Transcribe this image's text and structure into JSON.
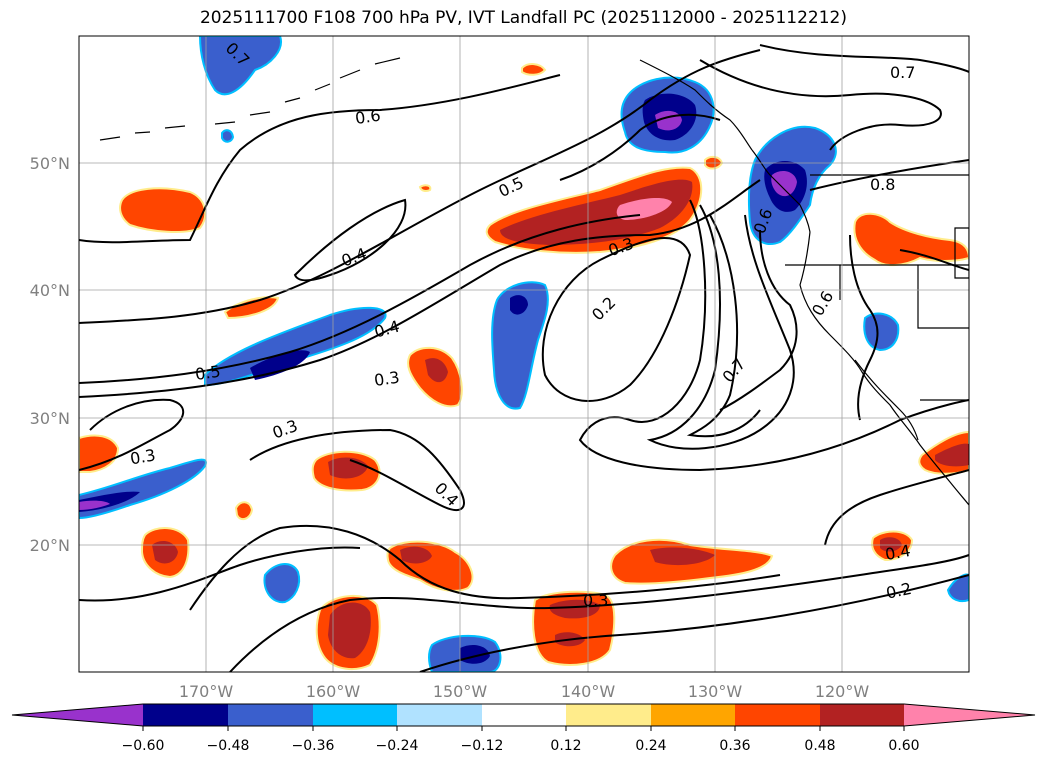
{
  "title": "2025111700 F108 700 hPa PV, IVT Landfall PC (2025112000 - 2025112212)",
  "map": {
    "lon_range": [
      -180,
      -110
    ],
    "lat_range": [
      10,
      60
    ],
    "lon_ticks": [
      "170°W",
      "160°W",
      "150°W",
      "140°W",
      "130°W",
      "120°W"
    ],
    "lat_ticks": [
      "50°N",
      "40°N",
      "30°N",
      "20°N"
    ],
    "gridlines": true
  },
  "contour_labels": [
    "0.7",
    "0.6",
    "0.5",
    "0.4",
    "0.5",
    "0.4",
    "0.3",
    "0.3",
    "0.3",
    "0.4",
    "0.3",
    "0.2",
    "0.7",
    "0.8",
    "0.6",
    "0.4",
    "0.2",
    "0.3",
    "0.7",
    "0.6"
  ],
  "colorbar": {
    "tick_labels": [
      "−0.60",
      "−0.48",
      "−0.36",
      "−0.24",
      "−0.12",
      "0.12",
      "0.24",
      "0.36",
      "0.48",
      "0.60"
    ],
    "colors": [
      "#9932cc",
      "#00008b",
      "#3a5fcd",
      "#00bfff",
      "#b0e2ff",
      "#ffffff",
      "#ffec8b",
      "#ffa500",
      "#ff4500",
      "#b22222",
      "#ff82ab"
    ]
  },
  "shading_colors": {
    "neg_outer": "#3a5fcd",
    "neg_mid": "#00008b",
    "neg_core": "#9932cc",
    "neg_edge": "#00bfff",
    "pos_outer": "#ff4500",
    "pos_mid": "#b22222",
    "pos_core": "#ff82ab",
    "pos_edge": "#ffec8b"
  }
}
